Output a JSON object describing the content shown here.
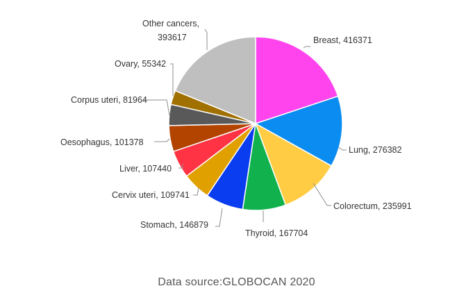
{
  "chart_data": {
    "type": "pie",
    "start_angle_deg": 0,
    "direction": "clockwise",
    "slices": [
      {
        "label": "Breast",
        "value": 416371,
        "color": "#ff44ee"
      },
      {
        "label": "Lung",
        "value": 276382,
        "color": "#0a8cf0"
      },
      {
        "label": "Colorectum",
        "value": 235991,
        "color": "#ffcc44"
      },
      {
        "label": "Thyroid",
        "value": 167704,
        "color": "#11b24d"
      },
      {
        "label": "Stomach",
        "value": 146879,
        "color": "#0a3cf0"
      },
      {
        "label": "Cervix uteri",
        "value": 109741,
        "color": "#e0a000"
      },
      {
        "label": "Liver",
        "value": 107440,
        "color": "#ff3344"
      },
      {
        "label": "Oesophagus",
        "value": 101378,
        "color": "#b34400"
      },
      {
        "label": "Corpus uteri",
        "value": 81964,
        "color": "#595959"
      },
      {
        "label": "Ovary",
        "value": 55342,
        "color": "#a07000"
      },
      {
        "label": "Other cancers",
        "value": 393617,
        "color": "#bfbfbf"
      }
    ],
    "labels": [
      {
        "text": "Breast, 416371"
      },
      {
        "text": "Lung, 276382"
      },
      {
        "text": "Colorectum, 235991"
      },
      {
        "text": "Thyroid, 167704"
      },
      {
        "text": "Stomach, 146879"
      },
      {
        "text": "Cervix uteri, 109741"
      },
      {
        "text": "Liver, 107440"
      },
      {
        "text": "Oesophagus, 101378"
      },
      {
        "text": "Corpus uteri, 81964"
      },
      {
        "text": "Ovary, 55342"
      },
      {
        "text": [
          "Other cancers,",
          "393617"
        ]
      }
    ],
    "note": "Data source:GLOBOCAN 2020"
  }
}
